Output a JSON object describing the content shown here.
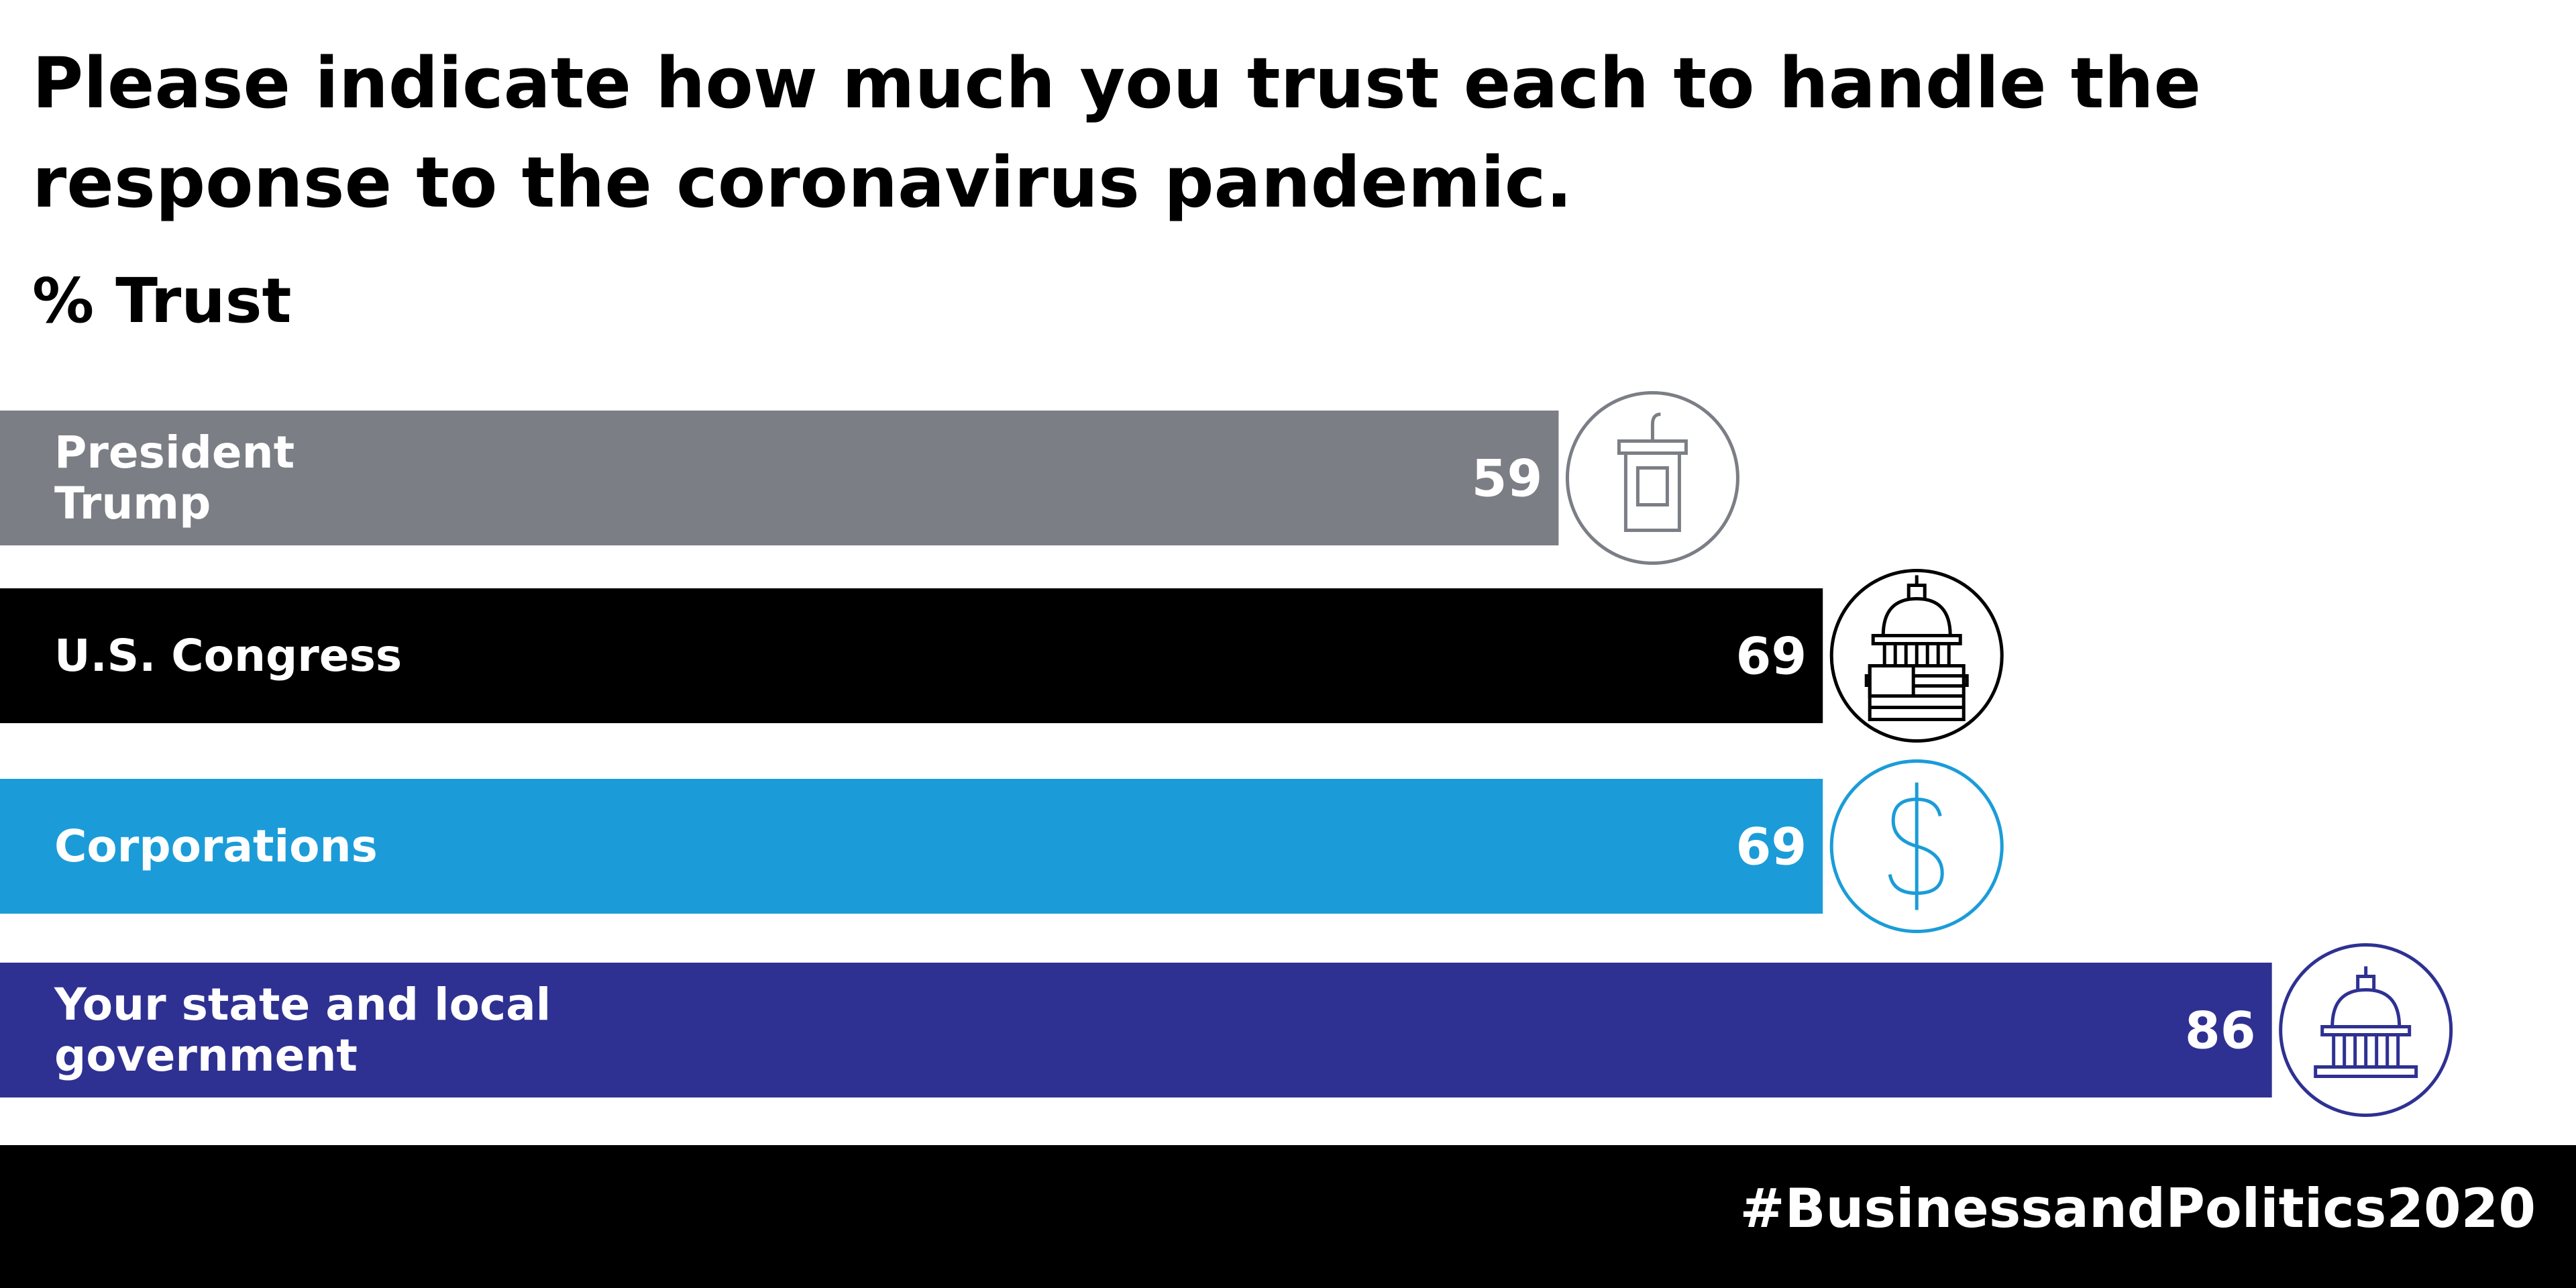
{
  "chart_data": {
    "type": "hbar",
    "title": "Please indicate how much you trust each to handle the response to the coronavirus pandemic.",
    "subtitle": "% Trust",
    "categories": [
      "President\nTrump",
      "U.S. Congress",
      "Corporations",
      "Your state and local\ngovernment"
    ],
    "values": [
      59,
      69,
      69,
      86
    ],
    "colors": [
      "#7b7e85",
      "#000000",
      "#1b9cd8",
      "#2e3192"
    ],
    "footer": "#BusinessandPolitics2020"
  }
}
